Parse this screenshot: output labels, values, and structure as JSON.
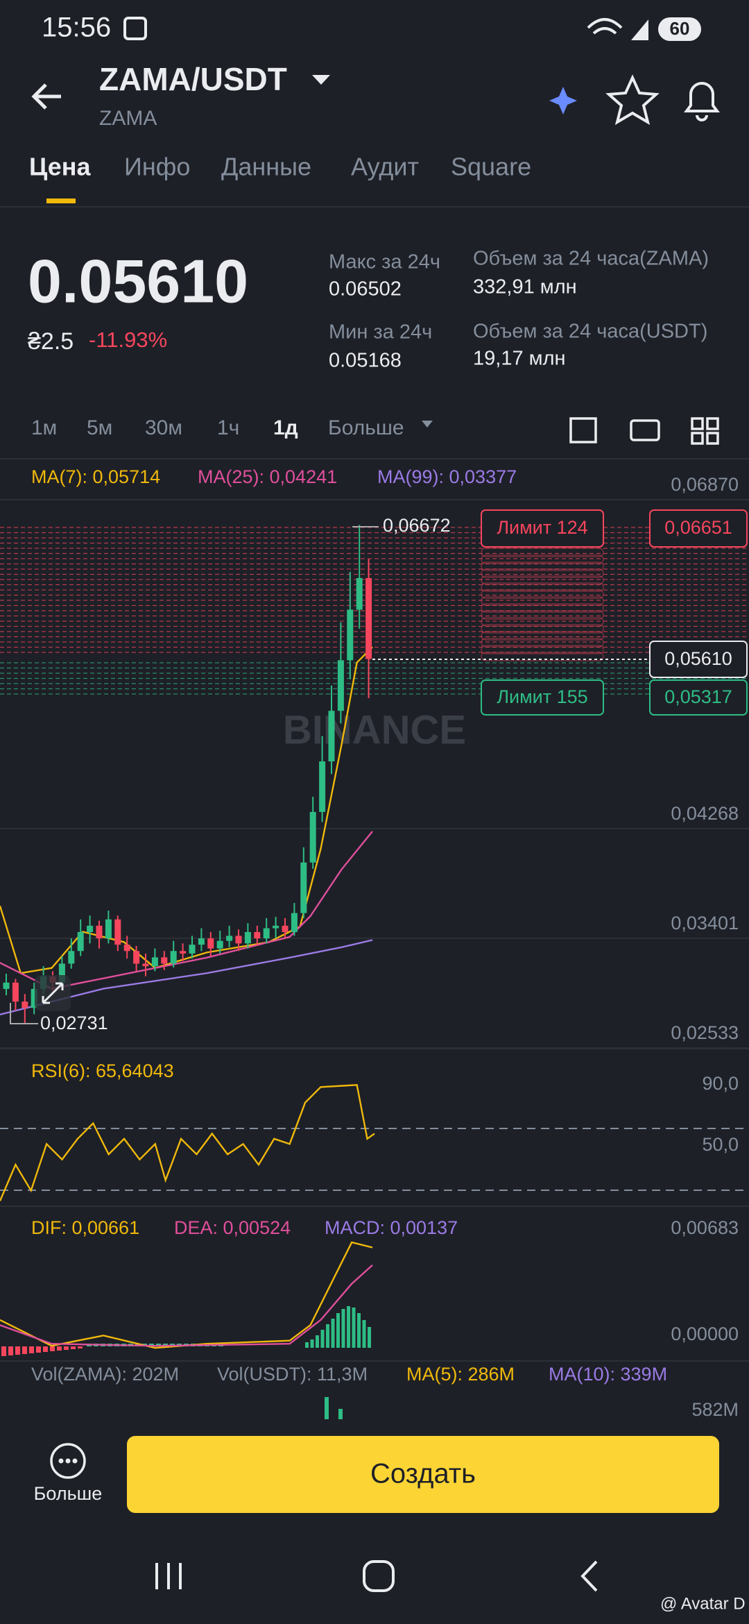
{
  "status_bar": {
    "time": "15:56",
    "battery": "60"
  },
  "header": {
    "pair": "ZAMA/USDT",
    "base": "ZAMA"
  },
  "tabs": [
    "Цена",
    "Инфо",
    "Данные",
    "Аудит",
    "Square"
  ],
  "ticker": {
    "price": "0.05610",
    "change_uah": "₴2.5",
    "change_pct": "-11.93%",
    "stats": [
      {
        "label": "Макс за 24ч",
        "value": "0.06502"
      },
      {
        "label": "Мин за 24ч",
        "value": "0.05168"
      },
      {
        "label": "Объем за 24 часа(ZAMA)",
        "value": "332,91 млн"
      },
      {
        "label": "Объем за 24 часа(USDT)",
        "value": "19,17 млн"
      }
    ]
  },
  "intervals": [
    "1м",
    "5м",
    "30м",
    "1ч",
    "1д",
    "Больше"
  ],
  "chart": {
    "ma_labels": [
      "MA(7): 0,05714",
      "MA(25): 0,04241",
      "MA(99): 0,03377"
    ],
    "ylim": [
      0.02533,
      0.0687
    ],
    "yticks": [
      {
        "value": 0.0687,
        "label": "0,06870"
      },
      {
        "value": 0.04268,
        "label": "0,04268"
      },
      {
        "value": 0.03401,
        "label": "0,03401"
      },
      {
        "value": 0.02533,
        "label": "0,02533"
      }
    ],
    "watermark": "BINANCE",
    "high_label": "0,06672",
    "low_label": "0,02731",
    "last_price": "0,05610",
    "orders": [
      {
        "label": "Лимит 124",
        "price": "0,06651"
      },
      {
        "label": "Лимит 155",
        "price": "0,05317"
      }
    ],
    "candles": [
      [
        0.03,
        0.0312,
        0.0295,
        0.0305
      ],
      [
        0.0305,
        0.0308,
        0.0283,
        0.029
      ],
      [
        0.029,
        0.0296,
        0.0273,
        0.0285
      ],
      [
        0.0285,
        0.0305,
        0.028,
        0.03
      ],
      [
        0.03,
        0.0318,
        0.0296,
        0.031
      ],
      [
        0.031,
        0.0314,
        0.0298,
        0.0305
      ],
      [
        0.0305,
        0.0326,
        0.0302,
        0.032
      ],
      [
        0.032,
        0.034,
        0.0316,
        0.033
      ],
      [
        0.033,
        0.0355,
        0.0326,
        0.0345
      ],
      [
        0.0345,
        0.0358,
        0.0336,
        0.035
      ],
      [
        0.035,
        0.0354,
        0.0332,
        0.034
      ],
      [
        0.034,
        0.0362,
        0.0336,
        0.0355
      ],
      [
        0.0355,
        0.0358,
        0.033,
        0.0335
      ],
      [
        0.0335,
        0.0342,
        0.0324,
        0.033
      ],
      [
        0.033,
        0.0334,
        0.0314,
        0.032
      ],
      [
        0.032,
        0.0328,
        0.031,
        0.0318
      ],
      [
        0.0318,
        0.0332,
        0.0314,
        0.0325
      ],
      [
        0.0325,
        0.033,
        0.0315,
        0.032
      ],
      [
        0.032,
        0.0338,
        0.0317,
        0.033
      ],
      [
        0.033,
        0.0336,
        0.0322,
        0.0328
      ],
      [
        0.0328,
        0.0342,
        0.0324,
        0.0335
      ],
      [
        0.0335,
        0.0348,
        0.033,
        0.034
      ],
      [
        0.034,
        0.0345,
        0.0326,
        0.0332
      ],
      [
        0.0332,
        0.0346,
        0.0328,
        0.0338
      ],
      [
        0.0338,
        0.035,
        0.0333,
        0.0342
      ],
      [
        0.0342,
        0.0347,
        0.033,
        0.0336
      ],
      [
        0.0336,
        0.0352,
        0.0332,
        0.0345
      ],
      [
        0.0345,
        0.035,
        0.0334,
        0.034
      ],
      [
        0.034,
        0.0356,
        0.0336,
        0.0348
      ],
      [
        0.0348,
        0.0357,
        0.034,
        0.035
      ],
      [
        0.035,
        0.0356,
        0.034,
        0.0345
      ],
      [
        0.0345,
        0.0368,
        0.0342,
        0.036
      ],
      [
        0.036,
        0.0412,
        0.0356,
        0.04
      ],
      [
        0.04,
        0.0452,
        0.0395,
        0.044
      ],
      [
        0.044,
        0.05,
        0.0432,
        0.048
      ],
      [
        0.048,
        0.054,
        0.047,
        0.052
      ],
      [
        0.052,
        0.059,
        0.051,
        0.056
      ],
      [
        0.056,
        0.063,
        0.0545,
        0.06
      ],
      [
        0.06,
        0.0667,
        0.0585,
        0.0625
      ],
      [
        0.0625,
        0.064,
        0.053,
        0.0561
      ]
    ]
  },
  "rsi": {
    "label": "RSI(6): 65,64043",
    "ticks": [
      "90,0",
      "50,0"
    ]
  },
  "macd": {
    "labels": [
      "DIF: 0,00661",
      "DEA: 0,00524",
      "MACD: 0,00137"
    ],
    "ticks": [
      "0,00683",
      "0,00000"
    ]
  },
  "volume": {
    "labels": [
      "Vol(ZAMA): 202M",
      "Vol(USDT): 11,3M",
      "MA(5): 286M",
      "MA(10): 339M"
    ],
    "tick": "582M"
  },
  "bottom": {
    "more": "Больше",
    "create": "Создать"
  },
  "footer": "@ Avatar D"
}
